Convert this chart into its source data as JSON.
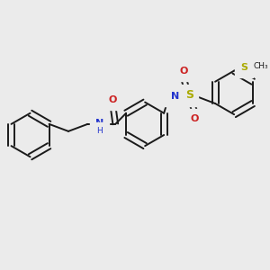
{
  "bg_color": "#ebebeb",
  "bond_color": "#1a1a1a",
  "N_color": "#2233cc",
  "O_color": "#cc2222",
  "S_color": "#aaaa00",
  "lw": 1.4,
  "dbo": 0.012,
  "r": 0.085,
  "figw": 3.0,
  "figh": 3.0,
  "dpi": 100,
  "xlim": [
    0.0,
    1.0
  ],
  "ylim": [
    0.1,
    0.9
  ]
}
